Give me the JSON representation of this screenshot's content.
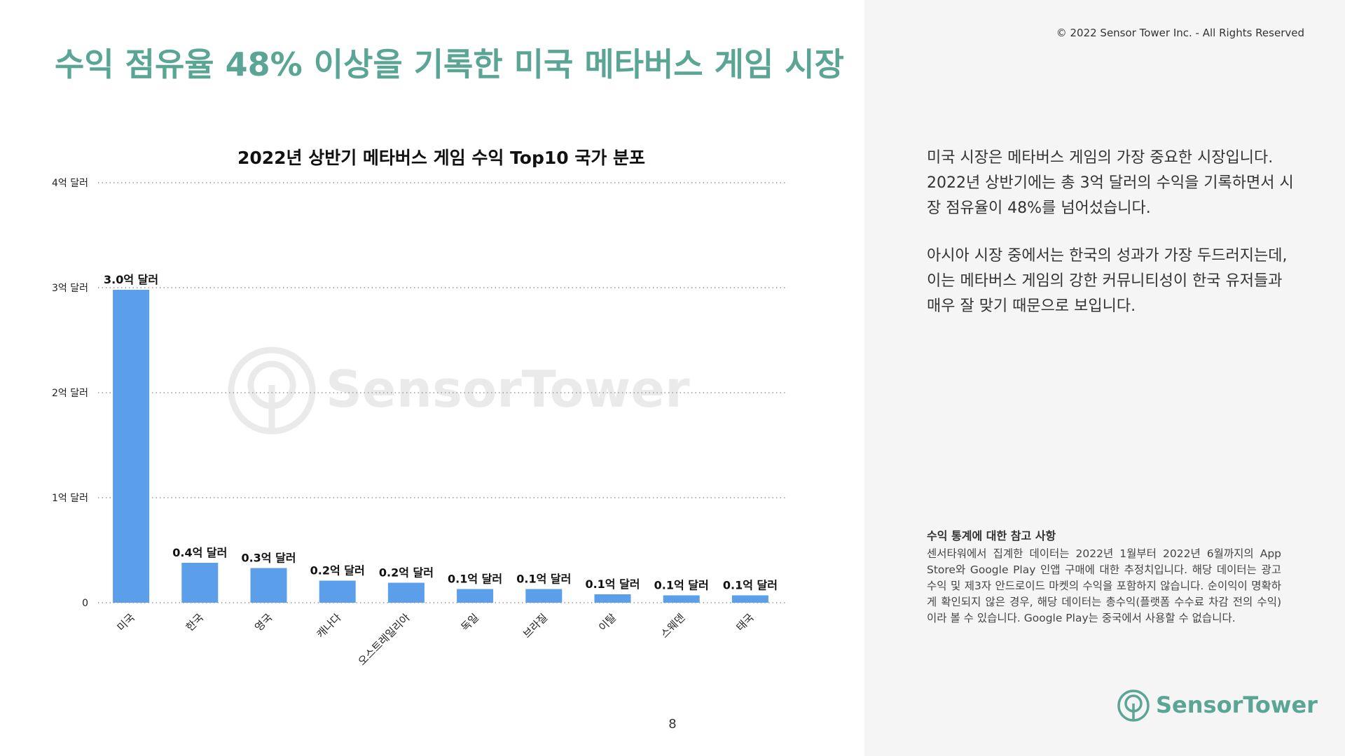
{
  "header": {
    "title": "수익 점유율 48% 이상을 기록한 미국 메타버스 게임 시장",
    "copyright": "© 2022 Sensor Tower Inc. - All Rights Reserved"
  },
  "chart_data": {
    "type": "bar",
    "title": "2022년 상반기 메타버스 게임 수익 Top10 국가 분포",
    "xlabel": "",
    "ylabel": "",
    "ylim": [
      0,
      4
    ],
    "grid": true,
    "y_ticks": [
      {
        "value": 0,
        "label": "0"
      },
      {
        "value": 1,
        "label": "1억 달러"
      },
      {
        "value": 2,
        "label": "2억 달러"
      },
      {
        "value": 3,
        "label": "3억 달러"
      },
      {
        "value": 4,
        "label": "4억 달러"
      }
    ],
    "categories": [
      "미국",
      "한국",
      "영국",
      "캐나다",
      "오스트레일리아",
      "독일",
      "브라질",
      "이탈",
      "스웨덴",
      "태국"
    ],
    "values": [
      2.98,
      0.38,
      0.33,
      0.21,
      0.19,
      0.13,
      0.13,
      0.08,
      0.07,
      0.07
    ],
    "data_labels": [
      "3.0억 달러",
      "0.4억 달러",
      "0.3억 달러",
      "0.2억 달러",
      "0.2억 달러",
      "0.1억 달러",
      "0.1억 달러",
      "0.1억 달러",
      "0.1억 달러",
      "0.1억 달러"
    ],
    "bar_color": "#5b9ee9",
    "grid_color": "#9a9a9a"
  },
  "watermark": {
    "text": "SensorTower"
  },
  "page": {
    "number": "8"
  },
  "description": {
    "paragraphs": [
      "미국 시장은 메타버스 게임의 가장 중요한 시장입니다. 2022년 상반기에는 총 3억 달러의 수익을 기록하면서 시장 점유율이 48%를 넘어섰습니다.",
      "아시아 시장 중에서는 한국의 성과가 가장 두드러지는데, 이는 메타버스 게임의 강한 커뮤니티성이 한국 유저들과 매우 잘 맞기 때문으로 보입니다."
    ]
  },
  "note": {
    "title": "수익 통계에 대한 참고 사항",
    "body": "센서타워에서 집계한 데이터는 2022년 1월부터 2022년 6월까지의 App Store와 Google Play 인앱 구매에 대한 추정치입니다. 해당 데이터는 광고 수익 및 제3자 안드로이드 마켓의 수익을 포함하지 않습니다. 순이익이 명확하게 확인되지 않은 경우, 해당 데이터는 총수익(플랫폼 수수료 차감 전의 수익)이라 볼 수 있습니다. Google Play는 중국에서 사용할 수 없습니다."
  },
  "logo": {
    "text": "SensorTower",
    "color": "#5ba594"
  }
}
